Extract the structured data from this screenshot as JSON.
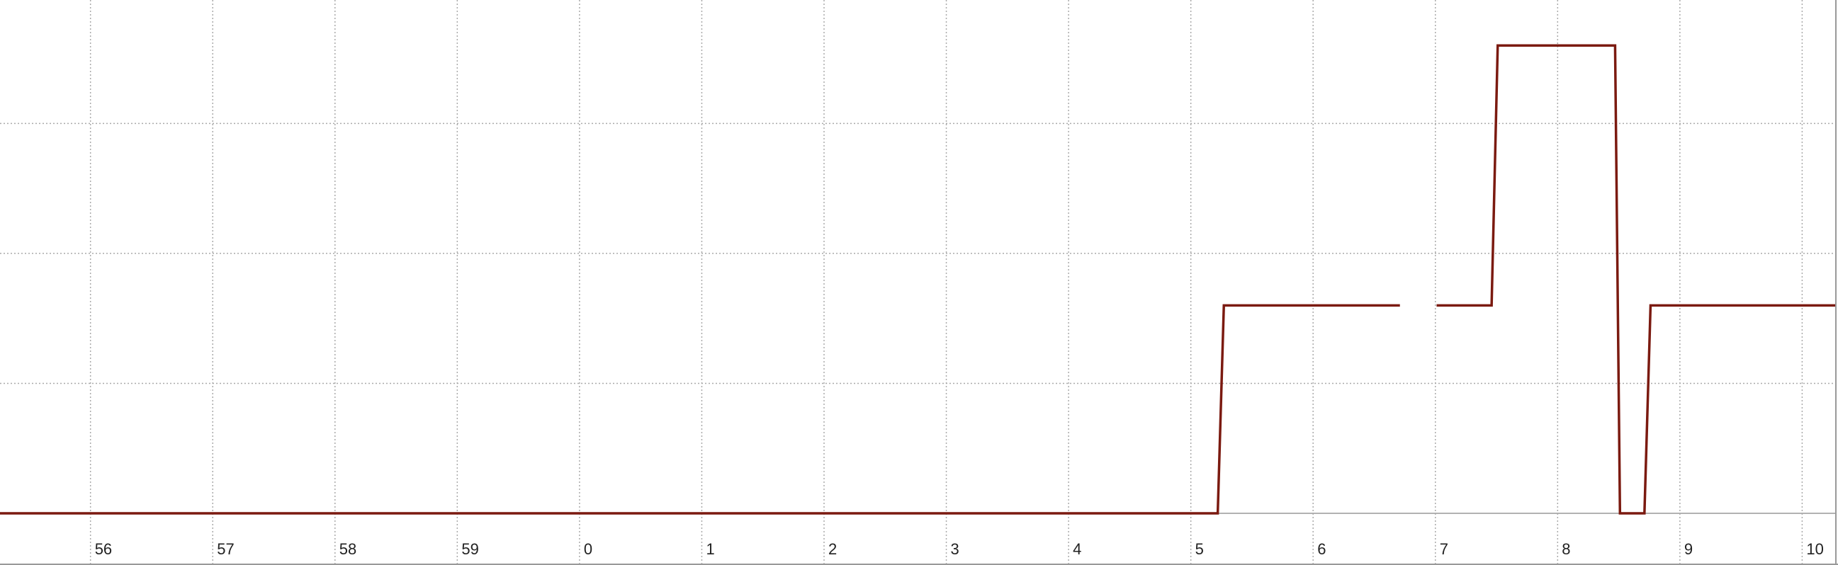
{
  "chart_data": {
    "type": "line",
    "x": [
      -4.74,
      5.22,
      5.27,
      6.71,
      6.86,
      7.01,
      7.46,
      7.51,
      8.47,
      8.51,
      8.71,
      8.76,
      10.27
    ],
    "series": [
      {
        "color": "#7b1a10",
        "values": [
          0,
          0,
          1.6,
          1.6,
          null,
          1.6,
          1.6,
          3.6,
          3.6,
          0,
          0,
          1.6,
          1.6
        ]
      }
    ],
    "xlim": [
      -4.74,
      10.27
    ],
    "xticks": [
      {
        "value": -4,
        "label": "56"
      },
      {
        "value": -3,
        "label": "57"
      },
      {
        "value": -2,
        "label": "58"
      },
      {
        "value": -1,
        "label": "59"
      },
      0,
      1,
      2,
      3,
      4,
      5,
      6,
      7,
      8,
      9,
      10
    ],
    "ylim": [
      0,
      3.95
    ],
    "yticks": [
      0,
      1,
      2,
      3
    ],
    "grid": true
  }
}
